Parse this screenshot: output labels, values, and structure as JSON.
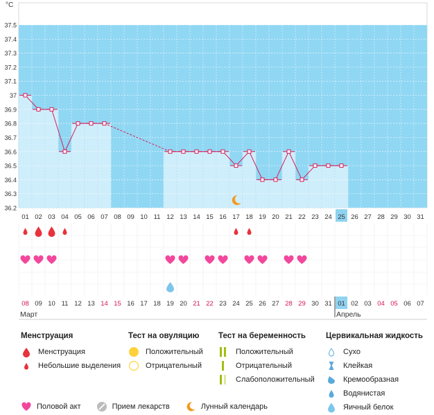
{
  "chart_data": {
    "type": "line",
    "y_unit_label": "°C",
    "ylim": [
      36.2,
      37.5
    ],
    "y_ticks": [
      "37.5",
      "37.4",
      "37.3",
      "37.2",
      "37.1",
      "37",
      "36.9",
      "36.8",
      "36.7",
      "36.6",
      "36.5",
      "36.4",
      "36.3",
      "36.2"
    ],
    "grid": true,
    "cycle_days": [
      "01",
      "02",
      "03",
      "04",
      "05",
      "06",
      "07",
      "08",
      "09",
      "10",
      "11",
      "12",
      "13",
      "14",
      "15",
      "16",
      "17",
      "18",
      "19",
      "20",
      "21",
      "22",
      "23",
      "24",
      "25",
      "26",
      "27",
      "28",
      "29",
      "30",
      "31"
    ],
    "current_day": "25",
    "temperatures": [
      37.0,
      36.9,
      36.9,
      36.6,
      36.8,
      36.8,
      36.8,
      null,
      null,
      null,
      null,
      36.6,
      36.6,
      36.6,
      36.6,
      36.6,
      36.5,
      36.6,
      36.4,
      36.4,
      36.6,
      36.4,
      36.5,
      36.5,
      36.5,
      null,
      null,
      null,
      null,
      null,
      null
    ],
    "interpolated_gap": {
      "from_day": 7,
      "to_day": 12
    },
    "menstruation": [
      {
        "day": 1,
        "type": "light"
      },
      {
        "day": 2,
        "type": "full"
      },
      {
        "day": 3,
        "type": "full"
      },
      {
        "day": 4,
        "type": "light"
      },
      {
        "day": 17,
        "type": "light"
      },
      {
        "day": 18,
        "type": "light"
      }
    ],
    "intercourse_days": [
      1,
      2,
      3,
      12,
      13,
      15,
      16,
      18,
      19,
      21,
      22
    ],
    "cervical_fluid": [
      {
        "day": 12,
        "type": "egg_white"
      }
    ],
    "lunar_calendar_day": 17,
    "dates": [
      {
        "label": "08",
        "weekend": true
      },
      {
        "label": "09",
        "weekend": false
      },
      {
        "label": "10",
        "weekend": false
      },
      {
        "label": "11",
        "weekend": false
      },
      {
        "label": "12",
        "weekend": false
      },
      {
        "label": "13",
        "weekend": false
      },
      {
        "label": "14",
        "weekend": true
      },
      {
        "label": "15",
        "weekend": true
      },
      {
        "label": "16",
        "weekend": false
      },
      {
        "label": "17",
        "weekend": false
      },
      {
        "label": "18",
        "weekend": false
      },
      {
        "label": "19",
        "weekend": false
      },
      {
        "label": "20",
        "weekend": false
      },
      {
        "label": "21",
        "weekend": true
      },
      {
        "label": "22",
        "weekend": true
      },
      {
        "label": "23",
        "weekend": false
      },
      {
        "label": "24",
        "weekend": false
      },
      {
        "label": "25",
        "weekend": false
      },
      {
        "label": "26",
        "weekend": false
      },
      {
        "label": "27",
        "weekend": false
      },
      {
        "label": "28",
        "weekend": true
      },
      {
        "label": "29",
        "weekend": true
      },
      {
        "label": "30",
        "weekend": false
      },
      {
        "label": "31",
        "weekend": false
      },
      {
        "label": "01",
        "weekend": false,
        "current": true
      },
      {
        "label": "02",
        "weekend": false
      },
      {
        "label": "03",
        "weekend": false
      },
      {
        "label": "04",
        "weekend": true
      },
      {
        "label": "05",
        "weekend": true
      },
      {
        "label": "06",
        "weekend": false
      },
      {
        "label": "07",
        "weekend": false
      }
    ],
    "months": [
      {
        "label": "Март",
        "start_index": 0
      },
      {
        "label": "Апрель",
        "start_index": 24
      }
    ]
  },
  "colors": {
    "sky": "#90d7f3",
    "bar": "#cfeefb",
    "bar_edge": "#a8dcf0",
    "line": "#d41e5a",
    "heart": "#f2479c",
    "drop": "#e8323c",
    "weekend": "#d4145a",
    "highlight": "#8fd3f1",
    "moon": "#f39a1e"
  },
  "legend": {
    "menstruation": {
      "title": "Менструация",
      "items": [
        "Менструация",
        "Небольшие выделения"
      ]
    },
    "ovulation": {
      "title": "Тест на овуляцию",
      "items": [
        "Положительный",
        "Отрицательный"
      ]
    },
    "pregnancy": {
      "title": "Тест на беременность",
      "items": [
        "Положительный",
        "Отрицательный",
        "Слабоположительный"
      ]
    },
    "cervical": {
      "title": "Цервикальная жидкость",
      "items": [
        "Сухо",
        "Клейкая",
        "Кремообразная",
        "Водянистая",
        "Яичный белок"
      ]
    },
    "bottom": [
      "Половой акт",
      "Прием лекарств",
      "Лунный календарь"
    ]
  }
}
